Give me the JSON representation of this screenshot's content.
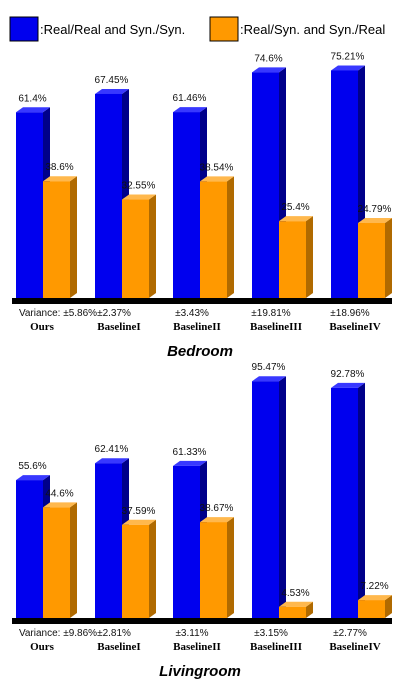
{
  "legend": {
    "series1": "Real/Real and Syn./Syn.",
    "series2": "Real/Syn. and Syn./Real"
  },
  "colors": {
    "series1_front": "#0000ee",
    "series1_side": "#00008a",
    "series1_top": "#3838ff",
    "series2_front": "#ff9900",
    "series2_side": "#b06a00",
    "series2_top": "#ffb84d"
  },
  "chart_data": [
    {
      "type": "bar",
      "title": "Bedroom",
      "categories": [
        "Ours",
        "BaselineI",
        "BaselineII",
        "BaselineIII",
        "BaselineIV"
      ],
      "series": [
        {
          "name": "Real/Real and Syn./Syn.",
          "values": [
            61.4,
            67.45,
            61.46,
            74.6,
            75.21
          ],
          "labels": [
            "61.4%",
            "67.45%",
            "61.46%",
            "74.6%",
            "75.21%"
          ]
        },
        {
          "name": "Real/Syn. and Syn./Real",
          "values": [
            38.6,
            32.55,
            38.54,
            25.4,
            24.79
          ],
          "labels": [
            "38.6%",
            "32.55%",
            "38.54%",
            "25.4%",
            "24.79%"
          ]
        }
      ],
      "variance_prefix": "Variance:",
      "variance": [
        "±5.86%",
        "±2.37%",
        "±3.43%",
        "±19.81%",
        "±18.96%"
      ],
      "ylim": [
        0,
        80
      ]
    },
    {
      "type": "bar",
      "title": "Livingroom",
      "categories": [
        "Ours",
        "BaselineI",
        "BaselineII",
        "BaselineIII",
        "BaselineIV"
      ],
      "series": [
        {
          "name": "Real/Real and Syn./Syn.",
          "values": [
            55.6,
            62.41,
            61.33,
            95.47,
            92.78
          ],
          "labels": [
            "55.6%",
            "62.41%",
            "61.33%",
            "95.47%",
            "92.78%"
          ]
        },
        {
          "name": "Real/Syn. and Syn./Real",
          "values": [
            44.6,
            37.59,
            38.67,
            4.53,
            7.22
          ],
          "labels": [
            "44.6%",
            "37.59%",
            "38.67%",
            "4.53%",
            "7.22%"
          ]
        }
      ],
      "variance_prefix": "Variance:",
      "variance": [
        "±9.86%",
        "±2.81%",
        "±3.11%",
        "±3.15%",
        "±2.77%"
      ],
      "ylim": [
        0,
        100
      ]
    }
  ]
}
